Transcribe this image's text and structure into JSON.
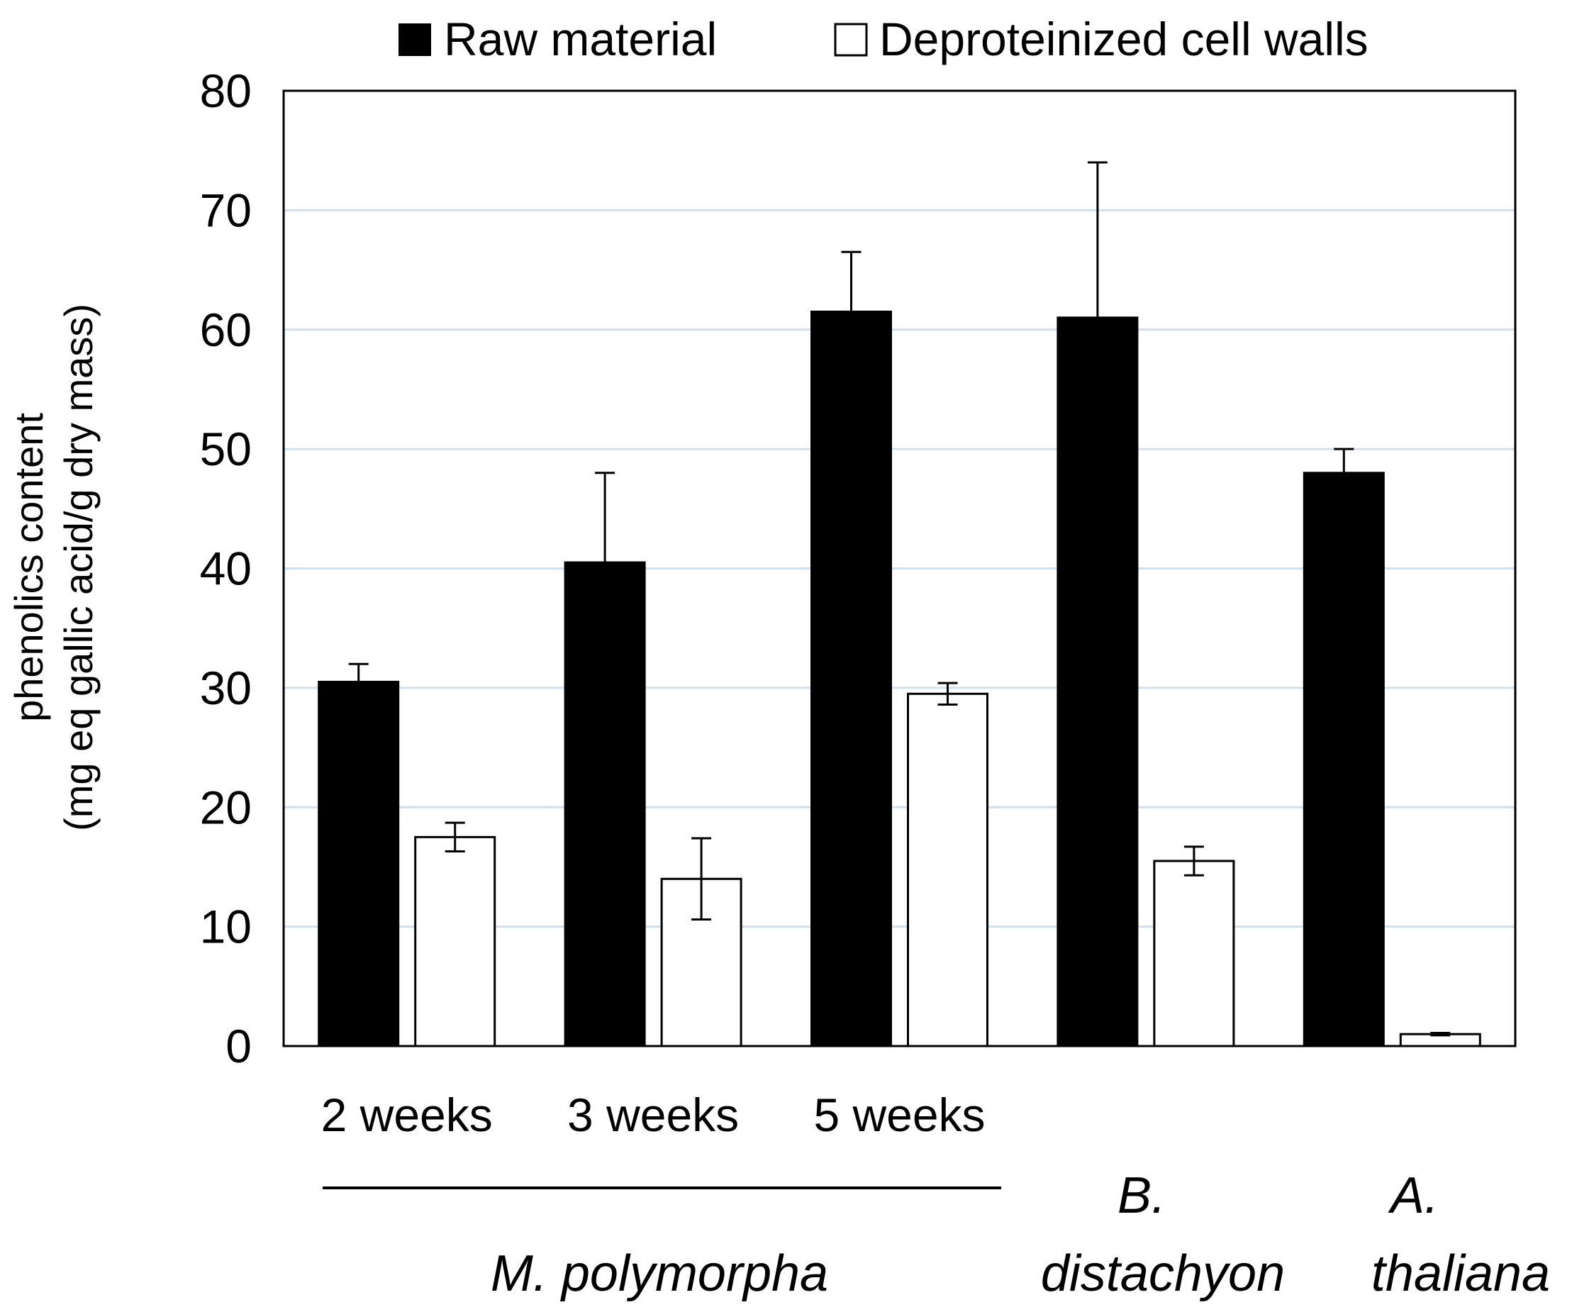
{
  "chart_data": {
    "type": "bar",
    "title": "",
    "xlabel": "",
    "ylabel": "phenolics content",
    "ylabel_units": "(mg eq gallic acid/g dry mass)",
    "ylim": [
      0,
      80
    ],
    "yticks": [
      "0",
      "10",
      "20",
      "30",
      "40",
      "50",
      "60",
      "70",
      "80"
    ],
    "grid": true,
    "legend_position": "top",
    "categories": [
      "2 weeks",
      "3 weeks",
      "5 weeks",
      "",
      ""
    ],
    "series": [
      {
        "name": "Raw material",
        "color": "#000000",
        "values": [
          30.5,
          40.5,
          61.5,
          61.0,
          48.0
        ],
        "errors": [
          1.5,
          7.5,
          5.0,
          13.0,
          2.0
        ]
      },
      {
        "name": "Deproteinized cell walls",
        "color": "#ffffff",
        "values": [
          17.5,
          14.0,
          29.5,
          15.5,
          1.0
        ],
        "errors": [
          1.2,
          3.4,
          0.9,
          1.2,
          0.1
        ]
      }
    ],
    "groups": [
      {
        "label": "M. polymorpha",
        "categories": [
          0,
          1,
          2
        ],
        "underline": true
      },
      {
        "label_line1": "B.",
        "label_line2": "distachyon",
        "categories": [
          3
        ]
      },
      {
        "label_line1": "A.",
        "label_line2": "thaliana",
        "categories": [
          4
        ]
      }
    ],
    "colors": {
      "grid": "#cfe0f0",
      "axis": "#000000",
      "bar_outline": "#000000"
    }
  }
}
